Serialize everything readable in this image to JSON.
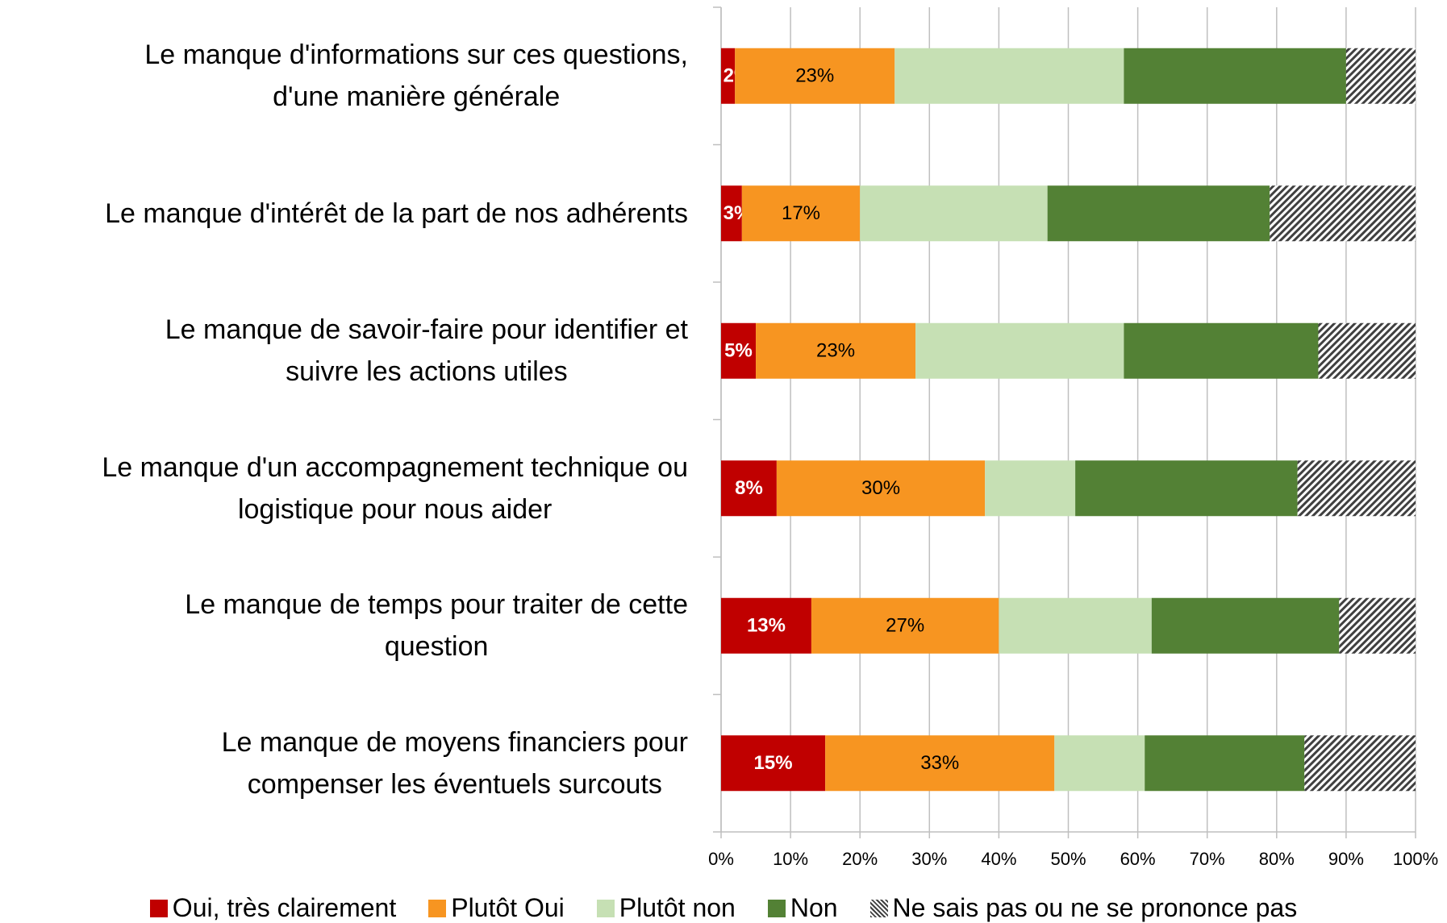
{
  "chart_data": {
    "type": "stacked-barh",
    "categories": [
      "Le manque d'informations sur ces questions,\nd'une manière générale",
      "Le manque d'intérêt de la part de nos adhérents",
      "Le manque de savoir-faire pour identifier et\nsuivre les actions utiles",
      "Le manque d'un accompagnement technique ou\nlogistique pour nous aider",
      "Le manque de temps pour traiter de cette\nquestion",
      "Le manque de moyens financiers pour\ncompenser les éventuels surcouts"
    ],
    "series": [
      {
        "name": "Oui, très clairement",
        "color": "#c00000",
        "values": [
          2,
          3,
          5,
          8,
          13,
          15
        ],
        "value_labels": [
          "2%",
          "3%",
          "5%",
          "8%",
          "13%",
          "15%"
        ]
      },
      {
        "name": "Plutôt Oui",
        "color": "#f79521",
        "values": [
          23,
          17,
          23,
          30,
          27,
          33
        ],
        "value_labels": [
          "23%",
          "17%",
          "23%",
          "30%",
          "27%",
          "33%"
        ]
      },
      {
        "name": "Plutôt non",
        "color": "#c6e0b4",
        "values": [
          33,
          27,
          30,
          13,
          22,
          13
        ]
      },
      {
        "name": "Non",
        "color": "#538135",
        "values": [
          32,
          32,
          28,
          32,
          27,
          23
        ]
      },
      {
        "name": "Ne sais pas ou ne se prononce pas",
        "color": "#404040",
        "hatch": true,
        "values": [
          10,
          21,
          14,
          17,
          11,
          16
        ]
      }
    ],
    "xlim": [
      0,
      100
    ],
    "xticks": [
      {
        "value": 0,
        "label": "0%"
      },
      {
        "value": 10,
        "label": "10%"
      },
      {
        "value": 20,
        "label": "20%"
      },
      {
        "value": 30,
        "label": "30%"
      },
      {
        "value": 40,
        "label": "40%"
      },
      {
        "value": 50,
        "label": "50%"
      },
      {
        "value": 60,
        "label": "60%"
      },
      {
        "value": 70,
        "label": "70%"
      },
      {
        "value": 80,
        "label": "80%"
      },
      {
        "value": 90,
        "label": "90%"
      },
      {
        "value": 100,
        "label": "100%"
      }
    ],
    "grid": true,
    "legend": "bottom"
  }
}
